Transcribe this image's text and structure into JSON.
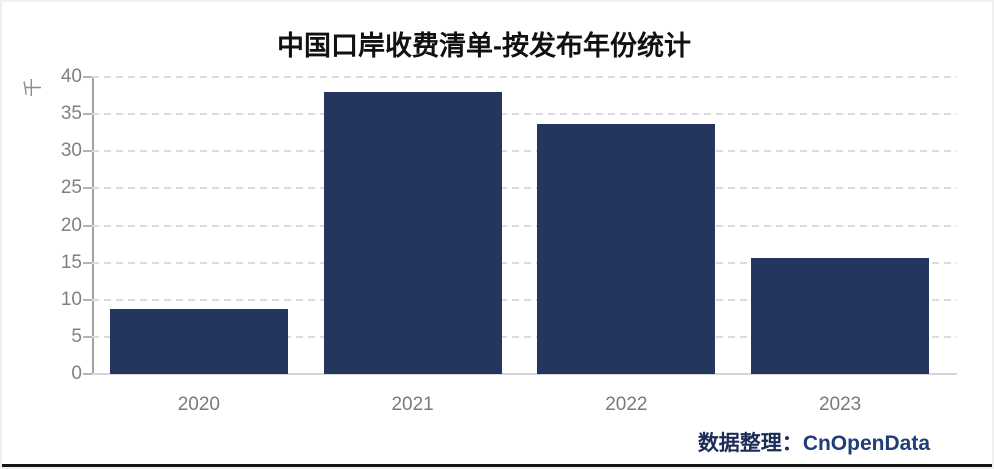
{
  "title": "中国口岸收费清单-按发布年份统计",
  "footer": {
    "prefix": "数据整理：",
    "brand": "CnOpenData"
  },
  "colors": {
    "bar": "#24355f",
    "title": "#111111",
    "axis_text": "#808080",
    "gridline": "#dbdbdb",
    "footer_navy": "#1f3e75"
  },
  "chart_data": {
    "type": "bar",
    "title": "中国口岸收费清单-按发布年份统计",
    "categories": [
      "2020",
      "2021",
      "2022",
      "2023"
    ],
    "values": [
      8.8,
      38.0,
      33.7,
      15.6
    ],
    "xlabel": "",
    "ylabel": "千",
    "ylim": [
      0,
      40
    ],
    "yticks": [
      0,
      5,
      10,
      15,
      20,
      25,
      30,
      35,
      40
    ],
    "grid": "horizontal-dashed",
    "legend_position": "none",
    "bar_color": "#24355f"
  }
}
